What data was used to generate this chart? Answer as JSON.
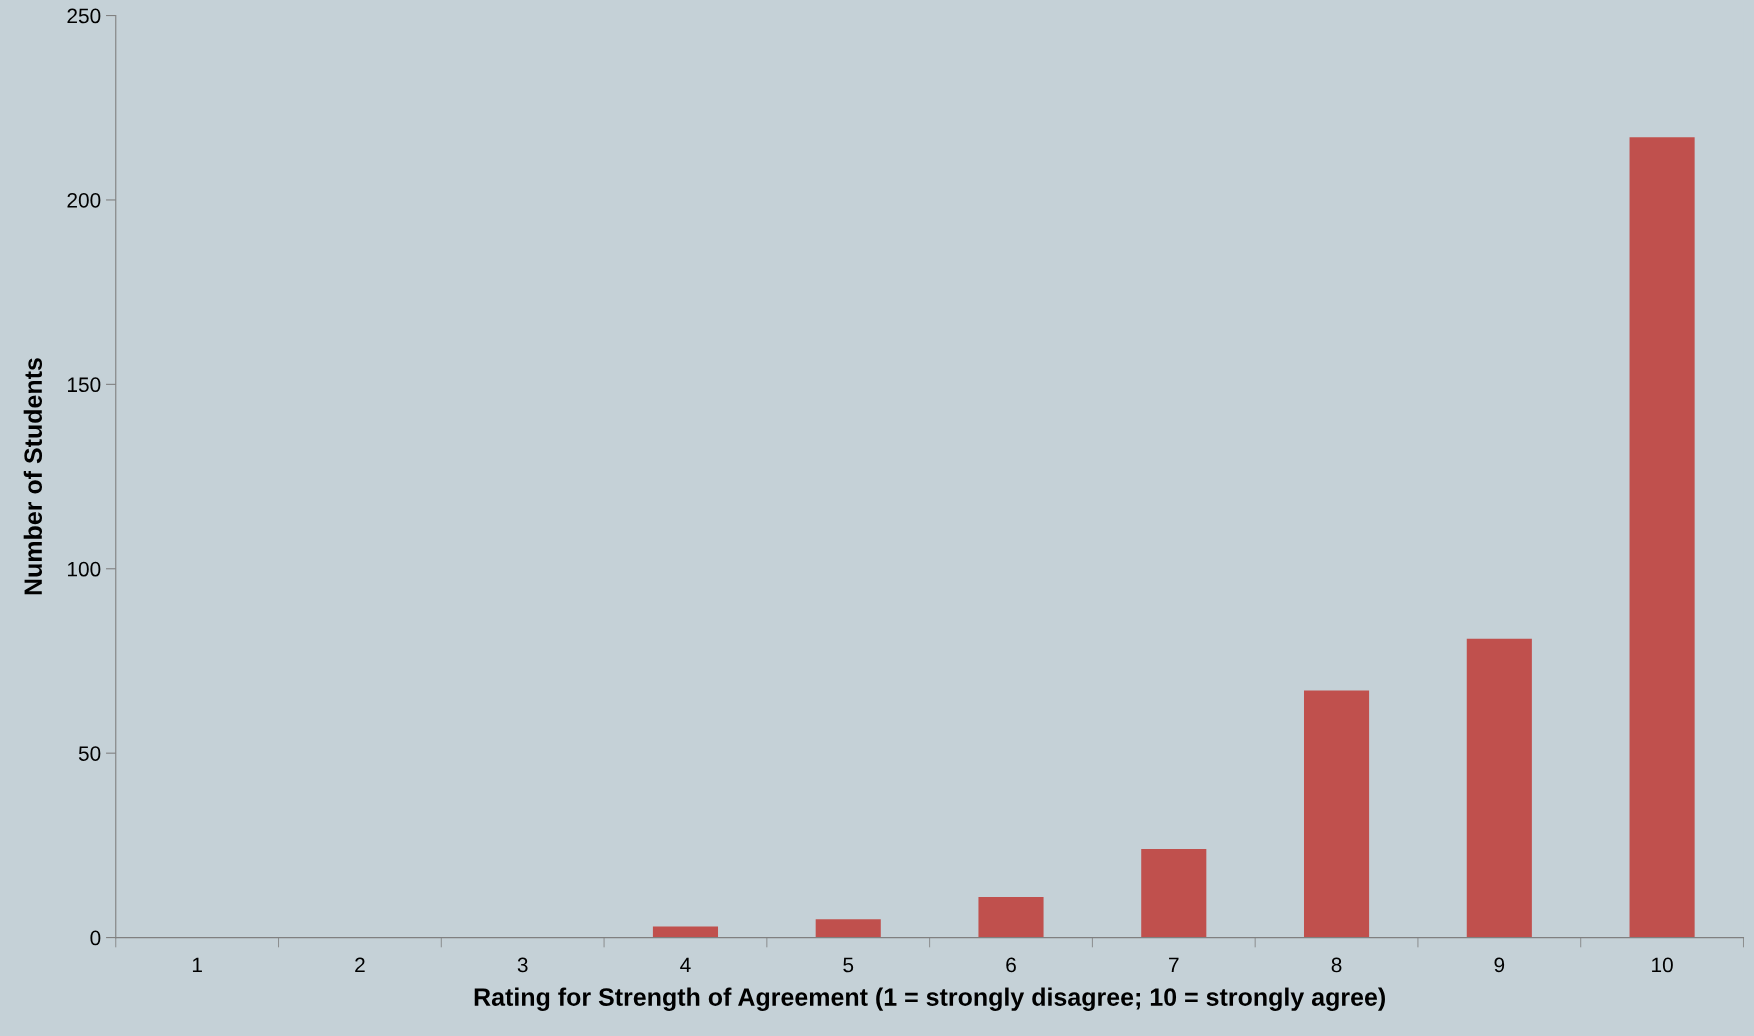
{
  "chart_data": {
    "type": "bar",
    "xlabel": "Rating for Strength of Agreement (1 = strongly disagree; 10 = strongly agree)",
    "ylabel": "Number of Students",
    "categories": [
      "1",
      "2",
      "3",
      "4",
      "5",
      "6",
      "7",
      "8",
      "9",
      "10"
    ],
    "values": [
      0,
      0,
      0,
      3,
      5,
      11,
      24,
      67,
      81,
      217
    ],
    "color": "#c0504d",
    "ylim": [
      0,
      250
    ],
    "yticks": [
      0,
      50,
      100,
      150,
      200,
      250
    ],
    "grid": false,
    "legend": false
  }
}
